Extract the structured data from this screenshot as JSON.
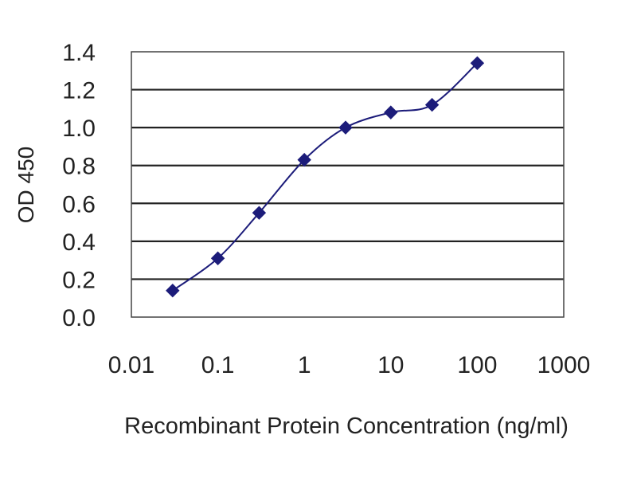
{
  "chart_data": {
    "type": "line",
    "title": "",
    "xlabel": "Recombinant Protein Concentration (ng/ml)",
    "ylabel": "OD 450",
    "x_scale": "log",
    "xlim": [
      0.01,
      1000
    ],
    "ylim": [
      0.0,
      1.4
    ],
    "x_ticks": [
      "0.01",
      "0.1",
      "1",
      "10",
      "100",
      "1000"
    ],
    "y_ticks": [
      "0.0",
      "0.2",
      "0.4",
      "0.6",
      "0.8",
      "1.0",
      "1.2",
      "1.4"
    ],
    "grid": "horizontal",
    "legend": "none",
    "series": [
      {
        "color": "#1c1c7a",
        "marker": "diamond",
        "x": [
          0.03,
          0.1,
          0.3,
          1,
          3,
          10,
          30,
          100
        ],
        "y": [
          0.14,
          0.31,
          0.55,
          0.83,
          1.0,
          1.08,
          1.12,
          1.34
        ]
      }
    ]
  }
}
